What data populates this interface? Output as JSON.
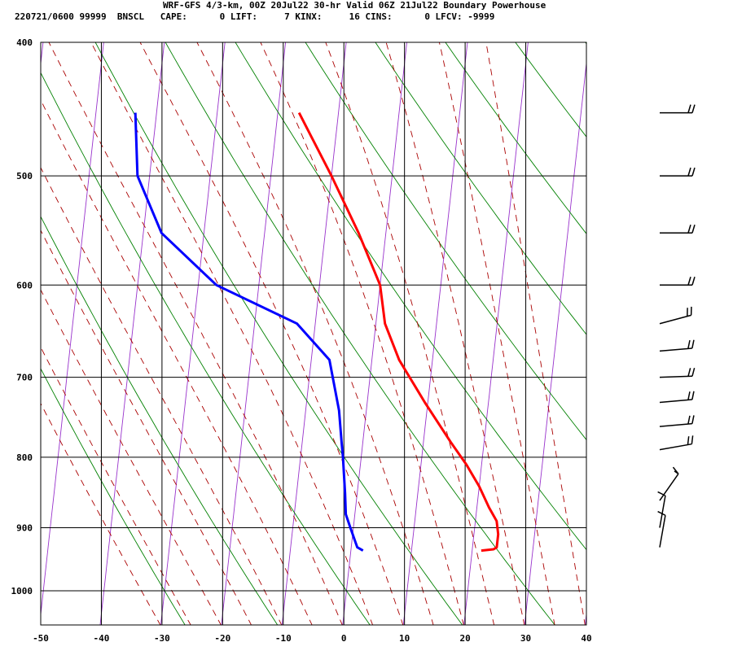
{
  "header": {
    "title": "WRF-GFS 4/3-km, 00Z 20Jul22 30-hr Valid 06Z 21Jul22 Boundary Powerhouse",
    "stats": "220721/0600 99999  BNSCL   CAPE:      0 LIFT:     7 KINX:     16 CINS:      0 LFCV: -9999"
  },
  "chart_data": {
    "type": "line",
    "title": "WRF-GFS 4/3-km, 00Z 20Jul22 30-hr Valid 06Z 21Jul22 Boundary Powerhouse",
    "xlabel": "",
    "ylabel": "",
    "x_ticks": [
      -50,
      -40,
      -30,
      -20,
      -10,
      0,
      10,
      20,
      30,
      40
    ],
    "y_ticks": [
      400,
      500,
      600,
      700,
      800,
      900,
      1000
    ],
    "xlim": [
      -50,
      40
    ],
    "ylim": [
      1040,
      400
    ],
    "y_scale": "log",
    "grid": true,
    "colors": {
      "temperature": "#ff0000",
      "dewpoint": "#0000ff",
      "isotherm": "#9933cc",
      "dry_adiabat": "#008000",
      "moist_adiabat": "#aa0000",
      "barb": "#000000"
    },
    "series": [
      {
        "key": "temperature",
        "x": [
          -16.5,
          -10,
          -4.5,
          0,
          1.5,
          4.5,
          9.5,
          14.5,
          17.5,
          20,
          22,
          23.5,
          24,
          24,
          23.5,
          21.5
        ],
        "y": [
          450,
          500,
          550,
          600,
          640,
          680,
          730,
          780,
          810,
          840,
          870,
          890,
          910,
          930,
          933,
          935
        ]
      },
      {
        "key": "dewpoint",
        "x": [
          -43.5,
          -42,
          -37,
          -27,
          -13,
          -7,
          -4.5,
          -3.5,
          -3,
          -2,
          -1.5,
          -0.5,
          0.5,
          1,
          2
        ],
        "y": [
          450,
          500,
          550,
          600,
          640,
          680,
          740,
          780,
          800,
          850,
          880,
          900,
          920,
          930,
          935
        ]
      }
    ],
    "wind_barbs": [
      {
        "p": 450,
        "dir": 270,
        "spd": 20
      },
      {
        "p": 500,
        "dir": 270,
        "spd": 20
      },
      {
        "p": 550,
        "dir": 270,
        "spd": 20
      },
      {
        "p": 600,
        "dir": 270,
        "spd": 20
      },
      {
        "p": 640,
        "dir": 255,
        "spd": 20
      },
      {
        "p": 670,
        "dir": 265,
        "spd": 20
      },
      {
        "p": 700,
        "dir": 268,
        "spd": 20
      },
      {
        "p": 730,
        "dir": 265,
        "spd": 20
      },
      {
        "p": 760,
        "dir": 265,
        "spd": 20
      },
      {
        "p": 790,
        "dir": 260,
        "spd": 20
      },
      {
        "p": 860,
        "dir": 215,
        "spd": 5
      },
      {
        "p": 900,
        "dir": 190,
        "spd": 10
      },
      {
        "p": 930,
        "dir": 190,
        "spd": 10
      }
    ]
  }
}
